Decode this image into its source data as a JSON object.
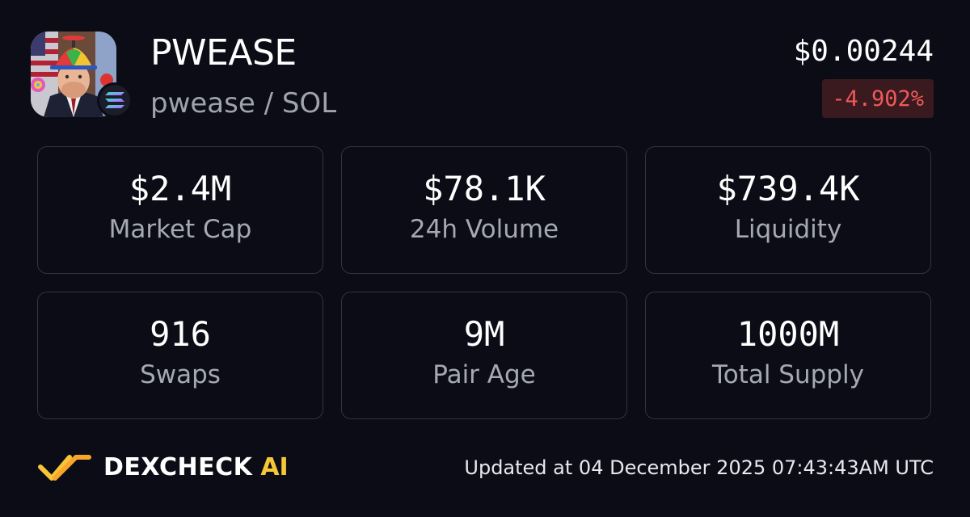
{
  "header": {
    "token_name": "PWEASE",
    "pair": "pwease / SOL",
    "price": "$0.00244",
    "change": "-4.902%",
    "avatar_icon": "token-portrait-icon",
    "chain_icon": "solana-icon"
  },
  "stats": [
    {
      "value": "$2.4M",
      "label": "Market Cap"
    },
    {
      "value": "$78.1K",
      "label": "24h Volume"
    },
    {
      "value": "$739.4K",
      "label": "Liquidity"
    },
    {
      "value": "916",
      "label": "Swaps"
    },
    {
      "value": "9M",
      "label": "Pair Age"
    },
    {
      "value": "1000M",
      "label": "Total Supply"
    }
  ],
  "footer": {
    "brand_name": "DEXCHECK",
    "brand_suffix": "AI",
    "updated": "Updated at 04 December 2025 07:43:43AM UTC"
  },
  "colors": {
    "background": "#0b0c16",
    "negative": "#ef5a5a",
    "negative_bg": "#3a1a1e",
    "brand_accent": "#f7c636",
    "border": "#33343d",
    "muted_text": "#a6a8b2"
  }
}
